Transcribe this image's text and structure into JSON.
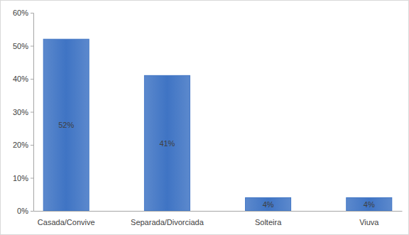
{
  "chart_data": {
    "type": "bar",
    "categories": [
      "Casada/Convive",
      "Separada/Divorciada",
      "Solteira",
      "Viuva"
    ],
    "values": [
      52,
      41,
      4,
      4
    ],
    "value_labels": [
      "52%",
      "41%",
      "4%",
      "4%"
    ],
    "data_labels": true,
    "color": "#3f74c4",
    "grid": false,
    "ylim": [
      0,
      60
    ],
    "yticks": [
      {
        "value": 0,
        "label": "0%"
      },
      {
        "value": 10,
        "label": "10%"
      },
      {
        "value": 20,
        "label": "20%"
      },
      {
        "value": 30,
        "label": "30%"
      },
      {
        "value": 40,
        "label": "40%"
      },
      {
        "value": 50,
        "label": "50%"
      },
      {
        "value": 60,
        "label": "60%"
      }
    ]
  }
}
